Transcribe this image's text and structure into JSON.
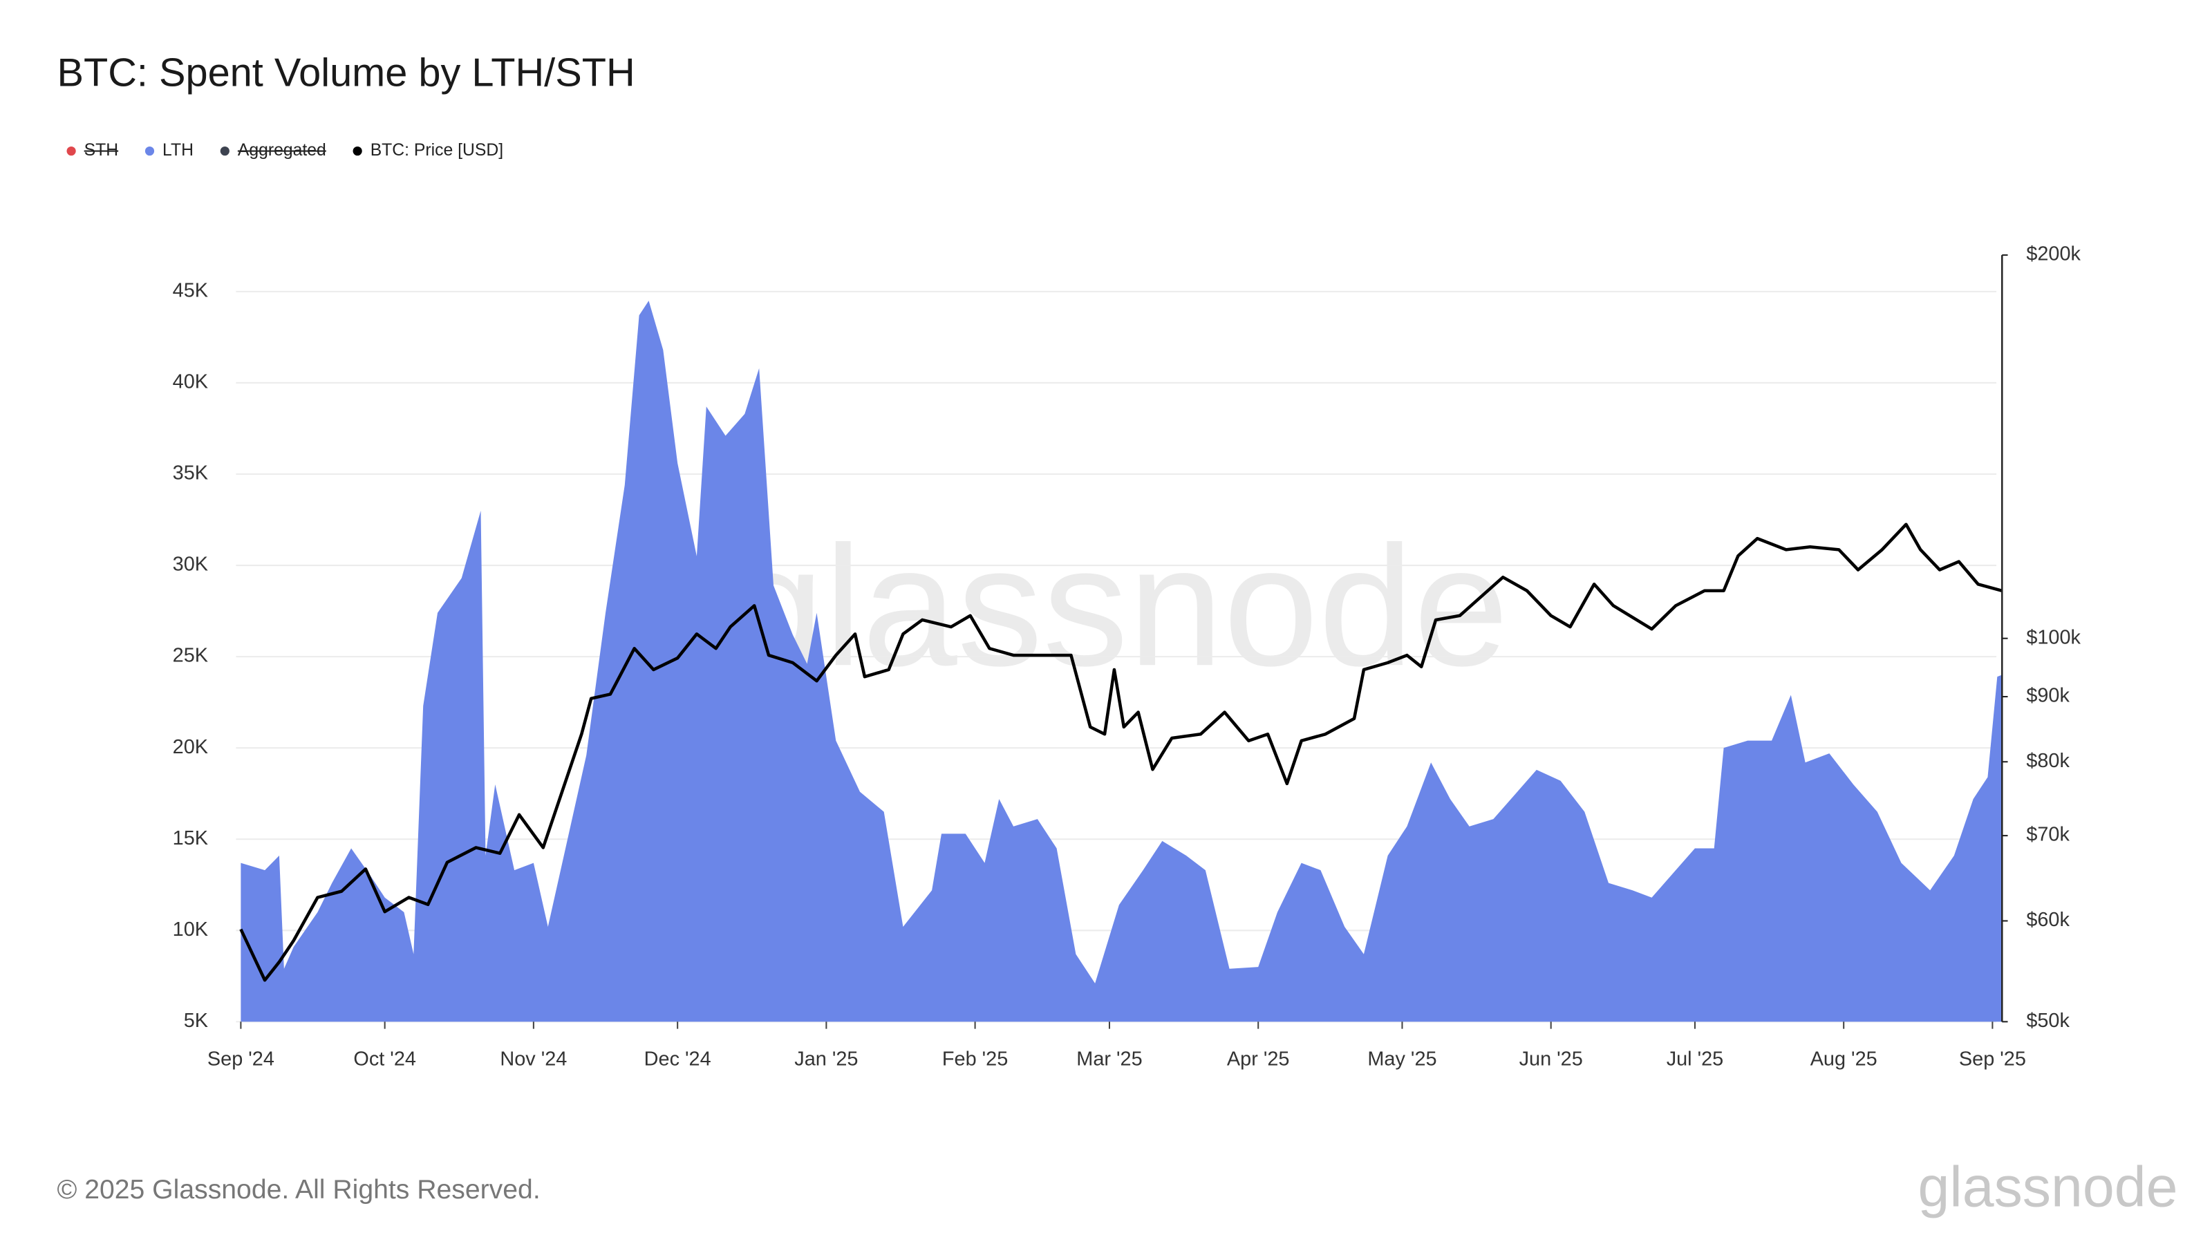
{
  "chart_data": {
    "type": "area-line",
    "title": "BTC: Spent Volume by LTH/STH",
    "copyright": "© 2025 Glassnode. All Rights Reserved.",
    "watermark": "glassnode",
    "logo": "glassnode",
    "grid": true,
    "xlim": [
      "2024-08-31",
      "2025-09-03"
    ],
    "xticks": [
      {
        "value": "2024-09-01",
        "label": "Sep '24"
      },
      {
        "value": "2024-10-01",
        "label": "Oct '24"
      },
      {
        "value": "2024-11-01",
        "label": "Nov '24"
      },
      {
        "value": "2024-12-01",
        "label": "Dec '24"
      },
      {
        "value": "2025-01-01",
        "label": "Jan '25"
      },
      {
        "value": "2025-02-01",
        "label": "Feb '25"
      },
      {
        "value": "2025-03-01",
        "label": "Mar '25"
      },
      {
        "value": "2025-04-01",
        "label": "Apr '25"
      },
      {
        "value": "2025-05-01",
        "label": "May '25"
      },
      {
        "value": "2025-06-01",
        "label": "Jun '25"
      },
      {
        "value": "2025-07-01",
        "label": "Jul '25"
      },
      {
        "value": "2025-08-01",
        "label": "Aug '25"
      },
      {
        "value": "2025-09-01",
        "label": "Sep '25"
      }
    ],
    "ylim": [
      5000,
      47000
    ],
    "yticks": [
      {
        "value": 5000,
        "label": "5K"
      },
      {
        "value": 10000,
        "label": "10K"
      },
      {
        "value": 15000,
        "label": "15K"
      },
      {
        "value": 20000,
        "label": "20K"
      },
      {
        "value": 25000,
        "label": "25K"
      },
      {
        "value": 30000,
        "label": "30K"
      },
      {
        "value": 35000,
        "label": "35K"
      },
      {
        "value": 40000,
        "label": "40K"
      },
      {
        "value": 45000,
        "label": "45K"
      }
    ],
    "y2lim": [
      50000,
      200000
    ],
    "y2log": true,
    "y2ticks": [
      {
        "value": 50000,
        "label": "$50k"
      },
      {
        "value": 60000,
        "label": "$60k"
      },
      {
        "value": 70000,
        "label": "$70k"
      },
      {
        "value": 80000,
        "label": "$80k"
      },
      {
        "value": 90000,
        "label": "$90k"
      },
      {
        "value": 100000,
        "label": "$100k"
      },
      {
        "value": 200000,
        "label": "$200k"
      }
    ],
    "series": [
      {
        "name": "STH",
        "color": "#e0474c",
        "hidden": true
      },
      {
        "name": "LTH",
        "color": "#6b86e8",
        "kind": "area",
        "x": [
          "2024-09-01",
          "2024-09-06",
          "2024-09-09",
          "2024-09-10",
          "2024-09-12",
          "2024-09-17",
          "2024-09-20",
          "2024-09-24",
          "2024-09-28",
          "2024-10-01",
          "2024-10-05",
          "2024-10-07",
          "2024-10-09",
          "2024-10-12",
          "2024-10-17",
          "2024-10-21",
          "2024-10-22",
          "2024-10-24",
          "2024-10-28",
          "2024-11-01",
          "2024-11-04",
          "2024-11-08",
          "2024-11-12",
          "2024-11-16",
          "2024-11-20",
          "2024-11-23",
          "2024-11-25",
          "2024-11-28",
          "2024-12-01",
          "2024-12-05",
          "2024-12-07",
          "2024-12-11",
          "2024-12-15",
          "2024-12-18",
          "2024-12-21",
          "2024-12-25",
          "2024-12-28",
          "2024-12-30",
          "2025-01-03",
          "2025-01-08",
          "2025-01-13",
          "2025-01-17",
          "2025-01-23",
          "2025-01-25",
          "2025-01-30",
          "2025-02-03",
          "2025-02-06",
          "2025-02-09",
          "2025-02-14",
          "2025-02-18",
          "2025-02-22",
          "2025-02-26",
          "2025-03-03",
          "2025-03-08",
          "2025-03-12",
          "2025-03-17",
          "2025-03-21",
          "2025-03-26",
          "2025-04-01",
          "2025-04-05",
          "2025-04-10",
          "2025-04-14",
          "2025-04-19",
          "2025-04-23",
          "2025-04-28",
          "2025-05-02",
          "2025-05-07",
          "2025-05-11",
          "2025-05-15",
          "2025-05-20",
          "2025-05-25",
          "2025-05-29",
          "2025-06-03",
          "2025-06-08",
          "2025-06-13",
          "2025-06-18",
          "2025-06-22",
          "2025-06-27",
          "2025-07-01",
          "2025-07-05",
          "2025-07-07",
          "2025-07-12",
          "2025-07-17",
          "2025-07-21",
          "2025-07-24",
          "2025-07-29",
          "2025-08-03",
          "2025-08-08",
          "2025-08-13",
          "2025-08-19",
          "2025-08-24",
          "2025-08-28",
          "2025-08-31",
          "2025-09-02",
          "2025-09-03"
        ],
        "values": [
          13700,
          13300,
          14100,
          7900,
          9100,
          11000,
          12600,
          14500,
          13000,
          11800,
          11000,
          8700,
          22300,
          27400,
          29300,
          33000,
          14100,
          18000,
          13300,
          13700,
          10200,
          14900,
          19600,
          27400,
          34400,
          43700,
          44500,
          41800,
          35600,
          30500,
          38700,
          37100,
          38300,
          40800,
          28900,
          26200,
          24600,
          27400,
          20400,
          17600,
          16500,
          10200,
          12200,
          15300,
          15300,
          13700,
          17200,
          15700,
          16100,
          14500,
          8700,
          7100,
          11400,
          13300,
          14900,
          14100,
          13300,
          7900,
          8000,
          11000,
          13700,
          13300,
          10200,
          8700,
          14100,
          15700,
          19200,
          17200,
          15700,
          16100,
          17600,
          18800,
          18200,
          16500,
          12600,
          12200,
          11800,
          13300,
          14500,
          14500,
          20000,
          20400,
          20400,
          22900,
          19200,
          19700,
          18000,
          16500,
          13700,
          12200,
          14100,
          17200,
          18400,
          23900,
          24000
        ]
      },
      {
        "name": "Aggregated",
        "color": "#3d4350",
        "hidden": true
      },
      {
        "name": "BTC: Price [USD]",
        "color": "#000000",
        "kind": "line",
        "axis": "y2",
        "x": [
          "2024-09-01",
          "2024-09-06",
          "2024-09-09",
          "2024-09-12",
          "2024-09-17",
          "2024-09-22",
          "2024-09-27",
          "2024-10-01",
          "2024-10-06",
          "2024-10-10",
          "2024-10-14",
          "2024-10-20",
          "2024-10-25",
          "2024-10-29",
          "2024-11-03",
          "2024-11-07",
          "2024-11-11",
          "2024-11-13",
          "2024-11-17",
          "2024-11-22",
          "2024-11-26",
          "2024-12-01",
          "2024-12-05",
          "2024-12-09",
          "2024-12-12",
          "2024-12-17",
          "2024-12-20",
          "2024-12-25",
          "2024-12-30",
          "2025-01-03",
          "2025-01-07",
          "2025-01-09",
          "2025-01-14",
          "2025-01-17",
          "2025-01-21",
          "2025-01-27",
          "2025-01-31",
          "2025-02-04",
          "2025-02-09",
          "2025-02-16",
          "2025-02-21",
          "2025-02-25",
          "2025-02-28",
          "2025-03-02",
          "2025-03-04",
          "2025-03-07",
          "2025-03-10",
          "2025-03-14",
          "2025-03-20",
          "2025-03-25",
          "2025-03-30",
          "2025-04-03",
          "2025-04-07",
          "2025-04-10",
          "2025-04-15",
          "2025-04-21",
          "2025-04-23",
          "2025-04-28",
          "2025-05-02",
          "2025-05-05",
          "2025-05-08",
          "2025-05-13",
          "2025-05-22",
          "2025-05-27",
          "2025-06-01",
          "2025-06-05",
          "2025-06-10",
          "2025-06-14",
          "2025-06-22",
          "2025-06-27",
          "2025-07-03",
          "2025-07-07",
          "2025-07-10",
          "2025-07-14",
          "2025-07-20",
          "2025-07-25",
          "2025-07-31",
          "2025-08-04",
          "2025-08-09",
          "2025-08-14",
          "2025-08-17",
          "2025-08-21",
          "2025-08-25",
          "2025-08-29",
          "2025-09-03"
        ],
        "values": [
          59100,
          53900,
          55700,
          57900,
          62600,
          63300,
          65900,
          61000,
          62600,
          61800,
          66700,
          68500,
          67800,
          72700,
          68500,
          75900,
          84100,
          89700,
          90400,
          98200,
          94500,
          96500,
          100800,
          98200,
          102100,
          106100,
          97000,
          95700,
          92600,
          97000,
          100800,
          93300,
          94500,
          100800,
          103400,
          102100,
          104200,
          98200,
          97000,
          97000,
          97000,
          85200,
          84100,
          94500,
          85200,
          87500,
          78900,
          83500,
          84100,
          87500,
          83100,
          84100,
          76900,
          83100,
          84100,
          86500,
          94500,
          95700,
          97000,
          95000,
          103400,
          104200,
          111700,
          109000,
          104200,
          102100,
          110300,
          106100,
          101700,
          106100,
          109000,
          109000,
          116100,
          119800,
          117400,
          118000,
          117400,
          113200,
          117400,
          122900,
          117400,
          113200,
          114900,
          110300,
          109000
        ]
      }
    ]
  }
}
